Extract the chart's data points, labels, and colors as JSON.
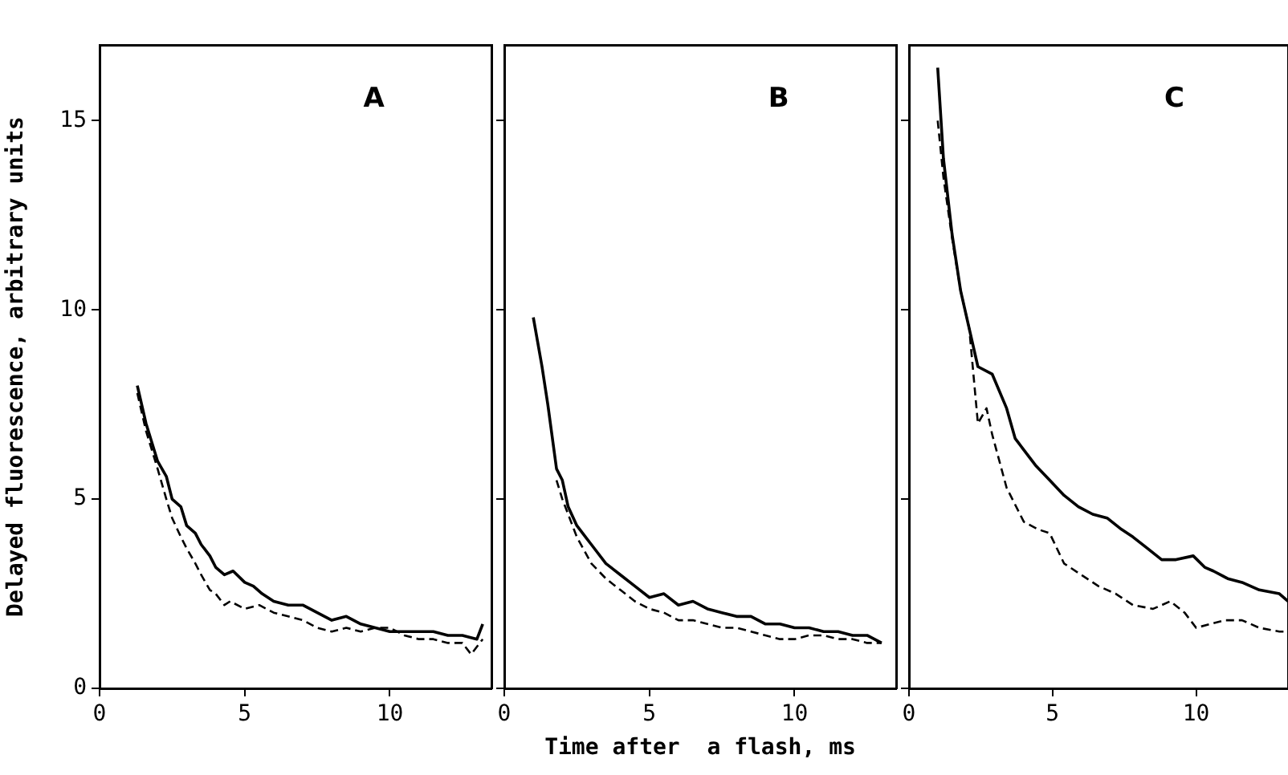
{
  "chart_data": [
    {
      "type": "line",
      "ylabel": "Delayed fluorescence, arbitrary units",
      "annotations": [
        "A"
      ],
      "xlim": [
        0,
        13.5
      ],
      "xticks": [
        0,
        5,
        10
      ],
      "ylim": [
        0,
        17
      ],
      "yticks": [
        0,
        5,
        10,
        15
      ],
      "marker": "none",
      "series": [
        {
          "color": "#000000",
          "line_style": "solid",
          "x": [
            1.3,
            1.6,
            2,
            2.3,
            2.5,
            2.8,
            3,
            3.3,
            3.5,
            3.8,
            4,
            4.3,
            4.6,
            5,
            5.3,
            5.6,
            6,
            6.5,
            7,
            7.5,
            8,
            8.5,
            9,
            9.5,
            10,
            10.5,
            11,
            11.5,
            12,
            12.5,
            13,
            13.2
          ],
          "values": [
            8,
            7,
            6,
            5.6,
            5,
            4.8,
            4.3,
            4.1,
            3.8,
            3.5,
            3.2,
            3,
            3.1,
            2.8,
            2.7,
            2.5,
            2.3,
            2.2,
            2.2,
            2,
            1.8,
            1.9,
            1.7,
            1.6,
            1.5,
            1.5,
            1.5,
            1.5,
            1.4,
            1.4,
            1.3,
            1.7
          ]
        },
        {
          "color": "#000000",
          "line_style": "dashed",
          "x": [
            1.3,
            1.6,
            2,
            2.3,
            2.5,
            2.8,
            3,
            3.3,
            3.5,
            3.8,
            4,
            4.3,
            4.5,
            5,
            5.5,
            6,
            6.5,
            7,
            7.5,
            8,
            8.5,
            9,
            9.5,
            10,
            10.5,
            11,
            11.5,
            12,
            12.5,
            12.8,
            13.2
          ],
          "values": [
            7.8,
            6.8,
            5.8,
            5,
            4.5,
            4,
            3.7,
            3.3,
            3,
            2.6,
            2.5,
            2.2,
            2.3,
            2.1,
            2.2,
            2,
            1.9,
            1.8,
            1.6,
            1.5,
            1.6,
            1.5,
            1.6,
            1.6,
            1.4,
            1.3,
            1.3,
            1.2,
            1.2,
            0.9,
            1.3
          ]
        }
      ]
    },
    {
      "type": "line",
      "xlabel": "Time after  a flash, ms",
      "annotations": [
        "B"
      ],
      "tick_labels": "x",
      "xlim": [
        0,
        13.5
      ],
      "xticks": [
        0,
        5,
        10
      ],
      "ylim": [
        0,
        17
      ],
      "yticks": [
        0,
        5,
        10,
        15
      ],
      "marker": "none",
      "series": [
        {
          "color": "#000000",
          "line_style": "solid",
          "x": [
            1,
            1.3,
            1.5,
            1.8,
            2,
            2.2,
            2.5,
            2.8,
            3,
            3.5,
            4,
            4.5,
            5,
            5.5,
            6,
            6.5,
            7,
            7.5,
            8,
            8.5,
            9,
            9.5,
            10,
            10.5,
            11,
            11.5,
            12,
            12.5,
            13
          ],
          "values": [
            9.8,
            8.5,
            7.5,
            5.8,
            5.5,
            4.8,
            4.3,
            4,
            3.8,
            3.3,
            3,
            2.7,
            2.4,
            2.5,
            2.2,
            2.3,
            2.1,
            2,
            1.9,
            1.9,
            1.7,
            1.7,
            1.6,
            1.6,
            1.5,
            1.5,
            1.4,
            1.4,
            1.2
          ]
        },
        {
          "color": "#000000",
          "line_style": "dashed",
          "x": [
            1.8,
            2,
            2.5,
            3,
            3.5,
            4,
            4.5,
            5,
            5.5,
            6,
            6.5,
            7,
            7.5,
            8,
            8.5,
            9,
            9.5,
            10,
            10.5,
            11,
            11.5,
            12,
            12.5,
            13
          ],
          "values": [
            5.5,
            5,
            4,
            3.3,
            2.9,
            2.6,
            2.3,
            2.1,
            2,
            1.8,
            1.8,
            1.7,
            1.6,
            1.6,
            1.5,
            1.4,
            1.3,
            1.3,
            1.4,
            1.4,
            1.3,
            1.3,
            1.2,
            1.2
          ]
        }
      ]
    },
    {
      "type": "line",
      "annotations": [
        "C"
      ],
      "tick_labels": "x",
      "xlim": [
        0,
        13.2
      ],
      "xticks": [
        0,
        5,
        10
      ],
      "ylim": [
        0,
        17
      ],
      "yticks": [
        0,
        5,
        10,
        15
      ],
      "marker": "none",
      "series": [
        {
          "color": "#000000",
          "line_style": "solid",
          "x": [
            1,
            1.2,
            1.5,
            1.8,
            2.1,
            2.4,
            2.9,
            3.4,
            3.7,
            4.4,
            4.9,
            5.4,
            5.9,
            6.4,
            6.9,
            7.4,
            7.8,
            8.3,
            8.8,
            9.3,
            9.9,
            10.3,
            10.6,
            11.1,
            11.6,
            12.2,
            12.9,
            13.2
          ],
          "values": [
            16.4,
            14,
            12,
            10.5,
            9.5,
            8.5,
            8.3,
            7.4,
            6.6,
            5.9,
            5.5,
            5.1,
            4.8,
            4.6,
            4.5,
            4.2,
            4,
            3.7,
            3.4,
            3.4,
            3.5,
            3.2,
            3.1,
            2.9,
            2.8,
            2.6,
            2.5,
            2.3
          ]
        },
        {
          "color": "#000000",
          "line_style": "dashed",
          "x": [
            1,
            1.2,
            1.5,
            1.8,
            2.1,
            2.4,
            2.7,
            2.9,
            3.4,
            4,
            4.5,
            4.9,
            5.4,
            6,
            6.6,
            7.2,
            7.8,
            8.5,
            9.1,
            9.6,
            10,
            10.5,
            11,
            11.6,
            12.2,
            12.9,
            13.2
          ],
          "values": [
            15,
            13.5,
            11.9,
            10.5,
            9.5,
            7,
            7.4,
            6.7,
            5.3,
            4.4,
            4.2,
            4.1,
            3.3,
            3,
            2.7,
            2.5,
            2.2,
            2.1,
            2.3,
            2,
            1.6,
            1.7,
            1.8,
            1.8,
            1.6,
            1.5,
            1.5
          ]
        }
      ]
    }
  ]
}
